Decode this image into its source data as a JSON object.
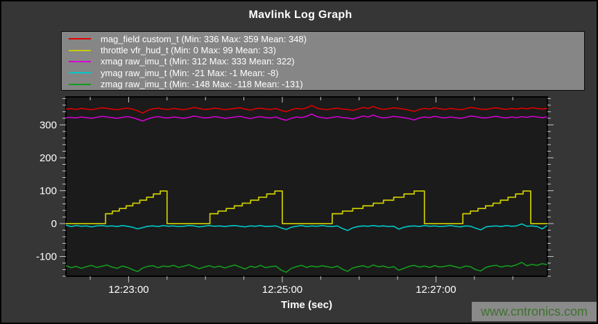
{
  "page": {
    "title": "Mavlink Log Graph"
  },
  "watermark": {
    "text": "www.cntronics.com"
  },
  "colors": {
    "page_bg": "#363636",
    "plot_bg": "#1b1b1b",
    "legend_bg": "#868686",
    "legend_border": "#0a0a0a",
    "axis_frame": "#000000",
    "tick": "#c8c8c8",
    "text": "#ffffff",
    "watermark_bg": "#8a8a8a",
    "watermark_text": "#3f7030"
  },
  "chart_data": {
    "type": "line",
    "title": "Mavlink Log Graph",
    "xlabel": "Time (sec)",
    "ylabel": "",
    "grid": false,
    "legend_position": "top",
    "x_axis": {
      "domain_sec": [
        0,
        376
      ],
      "tick_labels": [
        "12:23:00",
        "12:25:00",
        "12:27:00"
      ],
      "major_tick_times_sec": [
        49,
        169,
        289
      ],
      "minor_tick_times_sec": [
        19,
        79,
        109,
        139,
        199,
        229,
        259,
        319,
        349
      ],
      "minor_interval_sec": 30
    },
    "y_axis": {
      "domain": [
        -160,
        385
      ],
      "tick_values": [
        -100,
        0,
        100,
        200,
        300
      ],
      "tick_labels": [
        "-100",
        "0",
        "100",
        "200",
        "300"
      ],
      "minor_step": 20
    },
    "series": [
      {
        "name": "mag_field custom_t",
        "legend_label": "mag_field custom_t (Min: 336 Max: 359 Mean: 348)",
        "color": "#e00000",
        "min": 336,
        "max": 359,
        "mean": 348,
        "sample_step_sec": 4,
        "values": [
          348,
          349,
          347,
          350,
          348,
          346,
          349,
          352,
          350,
          348,
          346,
          349,
          351,
          348,
          343,
          336,
          344,
          349,
          351,
          348,
          347,
          350,
          348,
          346,
          349,
          353,
          350,
          347,
          348,
          351,
          349,
          346,
          348,
          350,
          352,
          348,
          345,
          349,
          351,
          348,
          347,
          350,
          344,
          340,
          346,
          350,
          348,
          352,
          359,
          351,
          348,
          346,
          349,
          351,
          348,
          347,
          344,
          348,
          353,
          350,
          356,
          350,
          347,
          349,
          352,
          350,
          348,
          345,
          341,
          347,
          350,
          348,
          352,
          349,
          347,
          350,
          348,
          346,
          349,
          353,
          351,
          348,
          347,
          350,
          352,
          349,
          347,
          350,
          348,
          351,
          349,
          352,
          350,
          348,
          350
        ]
      },
      {
        "name": "throttle vfr_hud_t",
        "legend_label": "throttle vfr_hud_t (Min: 0 Max: 99 Mean: 33)",
        "color": "#c8c800",
        "min": 0,
        "max": 99,
        "mean": 33,
        "points": [
          [
            0,
            0
          ],
          [
            31,
            0
          ],
          [
            31,
            30
          ],
          [
            36.3,
            30
          ],
          [
            36.3,
            38
          ],
          [
            41.7,
            38
          ],
          [
            41.7,
            46
          ],
          [
            47,
            46
          ],
          [
            47,
            54
          ],
          [
            52.3,
            54
          ],
          [
            52.3,
            62
          ],
          [
            57.7,
            62
          ],
          [
            57.7,
            71
          ],
          [
            63,
            71
          ],
          [
            63,
            80
          ],
          [
            68.3,
            80
          ],
          [
            68.3,
            90
          ],
          [
            73.7,
            90
          ],
          [
            73.7,
            99
          ],
          [
            79,
            99
          ],
          [
            79,
            0
          ],
          [
            112.5,
            0
          ],
          [
            112.5,
            30
          ],
          [
            118.8,
            30
          ],
          [
            118.8,
            38
          ],
          [
            125.2,
            38
          ],
          [
            125.2,
            46
          ],
          [
            131.5,
            46
          ],
          [
            131.5,
            54
          ],
          [
            137.8,
            54
          ],
          [
            137.8,
            62
          ],
          [
            144.2,
            62
          ],
          [
            144.2,
            71
          ],
          [
            150.5,
            71
          ],
          [
            150.5,
            80
          ],
          [
            156.8,
            80
          ],
          [
            156.8,
            90
          ],
          [
            163.2,
            90
          ],
          [
            163.2,
            99
          ],
          [
            169,
            99
          ],
          [
            169,
            0
          ],
          [
            208,
            0
          ],
          [
            208,
            30
          ],
          [
            216,
            30
          ],
          [
            216,
            38
          ],
          [
            224,
            38
          ],
          [
            224,
            46
          ],
          [
            232,
            46
          ],
          [
            232,
            54
          ],
          [
            240,
            54
          ],
          [
            240,
            62
          ],
          [
            248,
            62
          ],
          [
            248,
            71
          ],
          [
            256,
            71
          ],
          [
            256,
            80
          ],
          [
            264,
            80
          ],
          [
            264,
            90
          ],
          [
            272,
            90
          ],
          [
            272,
            99
          ],
          [
            280,
            99
          ],
          [
            280,
            0
          ],
          [
            310,
            0
          ],
          [
            310,
            30
          ],
          [
            315.9,
            30
          ],
          [
            315.9,
            38
          ],
          [
            321.8,
            38
          ],
          [
            321.8,
            46
          ],
          [
            327.7,
            46
          ],
          [
            327.7,
            54
          ],
          [
            333.6,
            54
          ],
          [
            333.6,
            62
          ],
          [
            339.4,
            62
          ],
          [
            339.4,
            71
          ],
          [
            345.3,
            71
          ],
          [
            345.3,
            80
          ],
          [
            351.2,
            80
          ],
          [
            351.2,
            90
          ],
          [
            357.1,
            90
          ],
          [
            357.1,
            99
          ],
          [
            363,
            99
          ],
          [
            363,
            0
          ],
          [
            376,
            0
          ]
        ]
      },
      {
        "name": "xmag raw_imu_t",
        "legend_label": "xmag raw_imu_t (Min: 312 Max: 333 Mean: 322)",
        "color": "#d400d4",
        "min": 312,
        "max": 333,
        "mean": 322,
        "sample_step_sec": 4,
        "values": [
          322,
          323,
          321,
          324,
          322,
          320,
          323,
          326,
          324,
          322,
          320,
          323,
          325,
          322,
          317,
          312,
          318,
          323,
          325,
          322,
          321,
          324,
          322,
          320,
          323,
          327,
          324,
          321,
          322,
          325,
          323,
          320,
          322,
          324,
          326,
          322,
          319,
          323,
          325,
          322,
          321,
          324,
          318,
          314,
          320,
          324,
          322,
          326,
          333,
          325,
          322,
          320,
          323,
          325,
          322,
          321,
          318,
          322,
          327,
          324,
          330,
          324,
          321,
          323,
          326,
          324,
          322,
          319,
          315,
          321,
          324,
          322,
          326,
          323,
          321,
          324,
          322,
          320,
          323,
          327,
          325,
          322,
          321,
          324,
          326,
          323,
          321,
          324,
          322,
          325,
          323,
          326,
          324,
          322,
          324
        ]
      },
      {
        "name": "ymag raw_imu_t",
        "legend_label": "ymag raw_imu_t (Min: -21 Max: -1 Mean: -8)",
        "color": "#00c8c8",
        "min": -21,
        "max": -1,
        "mean": -8,
        "sample_step_sec": 4,
        "values": [
          -5,
          -9,
          -6,
          -8,
          -7,
          -10,
          -7,
          -6,
          -8,
          -7,
          -9,
          -6,
          -8,
          -11,
          -16,
          -12,
          -8,
          -7,
          -9,
          -6,
          -8,
          -7,
          -9,
          -8,
          -6,
          -7,
          -10,
          -8,
          -6,
          -8,
          -7,
          -9,
          -7,
          -6,
          -8,
          -10,
          -7,
          -8,
          -6,
          -9,
          -8,
          -7,
          -13,
          -18,
          -11,
          -8,
          -6,
          -9,
          -7,
          -8,
          -6,
          -8,
          -9,
          -7,
          -15,
          -21,
          -13,
          -9,
          -7,
          -8,
          -6,
          -8,
          -7,
          -9,
          -8,
          -17,
          -11,
          -8,
          -7,
          -9,
          -6,
          -8,
          -7,
          -9,
          -8,
          -6,
          -8,
          -10,
          -7,
          -8,
          -14,
          -19,
          -10,
          -8,
          -7,
          -9,
          -6,
          -8,
          -7,
          -1,
          -8,
          -7,
          -9,
          -16,
          -6
        ]
      },
      {
        "name": "zmag raw_imu_t",
        "legend_label": "zmag raw_imu_t (Min: -148 Max: -118 Mean: -131)",
        "color": "#149a1e",
        "min": -148,
        "max": -118,
        "mean": -131,
        "sample_step_sec": 4,
        "values": [
          -128,
          -134,
          -130,
          -136,
          -131,
          -127,
          -133,
          -130,
          -126,
          -132,
          -136,
          -129,
          -133,
          -140,
          -146,
          -135,
          -130,
          -128,
          -134,
          -129,
          -131,
          -127,
          -133,
          -130,
          -125,
          -131,
          -137,
          -132,
          -128,
          -133,
          -129,
          -135,
          -130,
          -126,
          -132,
          -138,
          -130,
          -133,
          -127,
          -134,
          -131,
          -129,
          -141,
          -148,
          -136,
          -131,
          -127,
          -133,
          -129,
          -132,
          -128,
          -131,
          -134,
          -129,
          -139,
          -145,
          -135,
          -131,
          -128,
          -133,
          -126,
          -131,
          -129,
          -134,
          -131,
          -142,
          -136,
          -130,
          -127,
          -132,
          -129,
          -133,
          -128,
          -132,
          -130,
          -127,
          -131,
          -135,
          -129,
          -131,
          -140,
          -144,
          -133,
          -129,
          -127,
          -132,
          -128,
          -130,
          -125,
          -118,
          -128,
          -124,
          -127,
          -122,
          -125
        ]
      }
    ]
  }
}
